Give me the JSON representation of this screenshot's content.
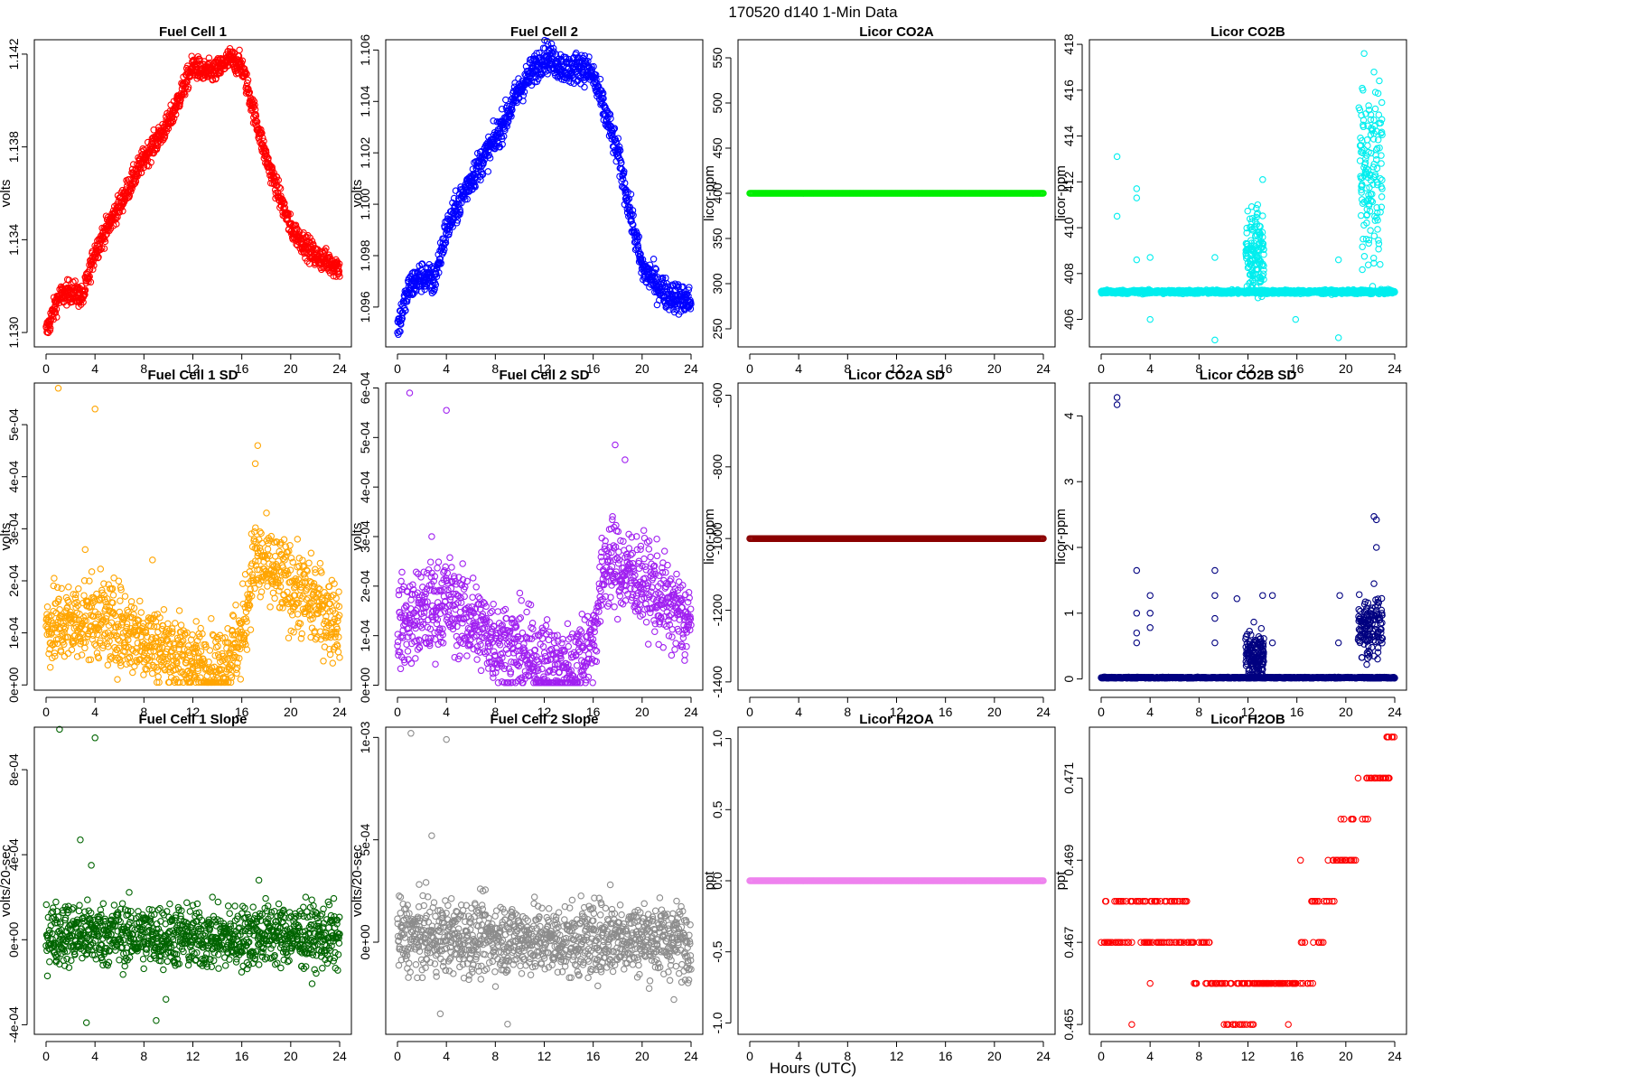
{
  "main_title": "170520   d140   1-Min Data",
  "x_label": "Hours (UTC)",
  "colors": {
    "red": "#ff0000",
    "blue": "#0000ff",
    "green": "#00ee00",
    "cyan": "#00eeee",
    "orange": "#ffa500",
    "purple": "#a020f0",
    "darkred": "#8b0000",
    "navy": "#000080",
    "darkgreen": "#006400",
    "gray": "#8c8c8c",
    "violet": "#ee82ee"
  },
  "chart_data": [
    {
      "id": "p1",
      "type": "scatter",
      "title": "Fuel Cell 1",
      "ylabel": "volts",
      "color_key": "red",
      "xlim": [
        -0.96,
        24.96
      ],
      "ylim": [
        1.12938,
        1.14262
      ],
      "xticks": [
        "0",
        "4",
        "8",
        "12",
        "16",
        "20",
        "24"
      ],
      "yticks": [
        "1.130",
        "1.134",
        "1.138",
        "1.142"
      ],
      "series": {
        "x": [
          0,
          1,
          2,
          3,
          4,
          6,
          8,
          10,
          12,
          13,
          14,
          15,
          16,
          18,
          20,
          22,
          24
        ],
        "y": [
          1.13,
          1.1315,
          1.1318,
          1.1315,
          1.1335,
          1.1355,
          1.1375,
          1.139,
          1.1415,
          1.1412,
          1.1413,
          1.1418,
          1.1415,
          1.1375,
          1.1345,
          1.1333,
          1.1328
        ],
        "noise": 0.00025
      }
    },
    {
      "id": "p2",
      "type": "scatter",
      "title": "Fuel Cell 2",
      "ylabel": "volts",
      "color_key": "blue",
      "xlim": [
        -0.96,
        24.96
      ],
      "ylim": [
        1.09445,
        1.1064
      ],
      "xticks": [
        "0",
        "4",
        "8",
        "12",
        "16",
        "20",
        "24"
      ],
      "yticks": [
        "1.096",
        "1.098",
        "1.100",
        "1.102",
        "1.104",
        "1.106"
      ],
      "series": {
        "x": [
          0,
          1,
          2,
          3,
          4,
          6,
          8,
          10,
          12,
          13,
          14,
          15,
          16,
          18,
          20,
          22,
          24
        ],
        "y": [
          1.0952,
          1.0968,
          1.0972,
          1.097,
          1.099,
          1.101,
          1.1025,
          1.1045,
          1.1058,
          1.1055,
          1.1052,
          1.1054,
          1.105,
          1.102,
          1.0975,
          1.0965,
          1.0962
        ],
        "noise": 0.0003
      }
    },
    {
      "id": "p3",
      "type": "scatter",
      "title": "Licor CO2A",
      "ylabel": "licor-ppm",
      "color_key": "green",
      "xlim": [
        -0.96,
        24.96
      ],
      "ylim": [
        230,
        570
      ],
      "xticks": [
        "0",
        "4",
        "8",
        "12",
        "16",
        "20",
        "24"
      ],
      "yticks": [
        "250",
        "300",
        "350",
        "400",
        "450",
        "500",
        "550"
      ],
      "series": {
        "x": [
          0,
          24
        ],
        "y": [
          400,
          400
        ],
        "noise": 0
      }
    },
    {
      "id": "p4",
      "type": "scatter",
      "title": "Licor CO2B",
      "ylabel": "licor-ppm",
      "color_key": "cyan",
      "xlim": [
        -0.96,
        24.96
      ],
      "ylim": [
        404.8,
        418.2
      ],
      "xticks": [
        "0",
        "4",
        "8",
        "12",
        "16",
        "20",
        "24"
      ],
      "yticks": [
        "406",
        "408",
        "410",
        "412",
        "414",
        "416",
        "418"
      ],
      "series": {
        "x": [
          0,
          24
        ],
        "y": [
          407.2,
          407.2
        ],
        "noise": 0.1,
        "spikes": [
          [
            1.3,
            413.1
          ],
          [
            1.3,
            410.5
          ],
          [
            2.9,
            411.7
          ],
          [
            2.9,
            411.3
          ],
          [
            2.9,
            408.6
          ],
          [
            4,
            408.7
          ],
          [
            4,
            406
          ],
          [
            9.3,
            408.7
          ],
          [
            9.3,
            405.1
          ],
          [
            12.3,
            409
          ],
          [
            12.8,
            411
          ],
          [
            13.2,
            412.1
          ],
          [
            15.9,
            406
          ],
          [
            19.4,
            408.6
          ],
          [
            19.4,
            405.2
          ],
          [
            21.5,
            417.6
          ],
          [
            21.4,
            416
          ],
          [
            22.3,
            414.7
          ],
          [
            22.9,
            412.8
          ],
          [
            22.8,
            408.4
          ]
        ],
        "bursts": [
          [
            11.8,
            13.3,
            409,
            1.6
          ],
          [
            21,
            23,
            412.5,
            3.5
          ]
        ]
      }
    },
    {
      "id": "p5",
      "type": "scatter",
      "title": "Fuel Cell 1 SD",
      "ylabel": "volts",
      "color_key": "orange",
      "xlim": [
        -0.96,
        24.96
      ],
      "ylim": [
        -1e-05,
        0.00058
      ],
      "xticks": [
        "0",
        "4",
        "8",
        "12",
        "16",
        "20",
        "24"
      ],
      "yticks": [
        "0e+00",
        "1e-04",
        "2e-04",
        "3e-04",
        "4e-04",
        "5e-04"
      ],
      "series": {
        "x": [
          0,
          4,
          8,
          12,
          14,
          16,
          17,
          20,
          24
        ],
        "y": [
          0.00011,
          0.00013,
          9e-05,
          4e-05,
          3e-05,
          9e-05,
          0.00024,
          0.00019,
          0.00012
        ],
        "noise": 4e-05,
        "spikes": [
          [
            1,
            0.00057
          ],
          [
            4,
            0.00053
          ],
          [
            17.3,
            0.00046
          ],
          [
            17.1,
            0.000425
          ],
          [
            8.7,
            0.00024
          ],
          [
            3.2,
            0.00026
          ]
        ]
      }
    },
    {
      "id": "p6",
      "type": "scatter",
      "title": "Fuel Cell 2 SD",
      "ylabel": "volts",
      "color_key": "purple",
      "xlim": [
        -0.96,
        24.96
      ],
      "ylim": [
        -1e-05,
        0.00061
      ],
      "xticks": [
        "0",
        "4",
        "8",
        "12",
        "16",
        "20",
        "24"
      ],
      "yticks": [
        "0e+00",
        "1e-04",
        "2e-04",
        "3e-04",
        "4e-04",
        "5e-04",
        "6e-04"
      ],
      "series": {
        "x": [
          0,
          4,
          8,
          12,
          14,
          16,
          17,
          20,
          24
        ],
        "y": [
          0.00012,
          0.00017,
          9e-05,
          4e-05,
          3e-05,
          9e-05,
          0.00025,
          0.00021,
          0.00012
        ],
        "noise": 4.5e-05,
        "spikes": [
          [
            1,
            0.00059
          ],
          [
            4,
            0.000555
          ],
          [
            17.8,
            0.000485
          ],
          [
            18.6,
            0.000455
          ],
          [
            2.8,
            0.0003
          ]
        ]
      }
    },
    {
      "id": "p7",
      "type": "scatter",
      "title": "Licor CO2A SD",
      "ylabel": "licor-ppm",
      "color_key": "darkred",
      "xlim": [
        -0.96,
        24.96
      ],
      "ylim": [
        -1423,
        -566
      ],
      "xticks": [
        "0",
        "4",
        "8",
        "12",
        "16",
        "20",
        "24"
      ],
      "yticks": [
        "-1400",
        "-1200",
        "-1000",
        "-800",
        "-600"
      ],
      "series": {
        "x": [
          0,
          24
        ],
        "y": [
          -1000,
          -1000
        ],
        "noise": 0
      }
    },
    {
      "id": "p8",
      "type": "scatter",
      "title": "Licor CO2B SD",
      "ylabel": "licor-ppm",
      "color_key": "navy",
      "xlim": [
        -0.96,
        24.96
      ],
      "ylim": [
        -0.17,
        4.5
      ],
      "xticks": [
        "0",
        "4",
        "8",
        "12",
        "16",
        "20",
        "24"
      ],
      "yticks": [
        "0",
        "1",
        "2",
        "3",
        "4"
      ],
      "series": {
        "x": [
          0,
          24
        ],
        "y": [
          0.02,
          0.02
        ],
        "noise": 0.01,
        "spikes": [
          [
            1.3,
            4.28
          ],
          [
            1.3,
            4.17
          ],
          [
            2.9,
            1.65
          ],
          [
            2.9,
            1
          ],
          [
            2.9,
            0.7
          ],
          [
            2.9,
            0.55
          ],
          [
            4,
            1.27
          ],
          [
            4,
            1.0
          ],
          [
            4,
            0.78
          ],
          [
            9.3,
            1.27
          ],
          [
            9.3,
            1.65
          ],
          [
            9.3,
            0.92
          ],
          [
            9.3,
            0.55
          ],
          [
            11.1,
            1.22
          ],
          [
            13.2,
            1.27
          ],
          [
            14,
            1.27
          ],
          [
            14,
            0.55
          ],
          [
            19.5,
            1.27
          ],
          [
            19.4,
            0.55
          ],
          [
            22.3,
            2.47
          ],
          [
            22.5,
            2.42
          ],
          [
            22.5,
            2.0
          ],
          [
            22.3,
            1.45
          ]
        ],
        "bursts": [
          [
            11.8,
            13.3,
            0.35,
            0.35
          ],
          [
            21,
            23,
            0.75,
            0.45
          ]
        ]
      }
    },
    {
      "id": "p9",
      "type": "scatter",
      "title": "Fuel Cell 1 Slope",
      "ylabel": "volts/20-sec",
      "color_key": "darkgreen",
      "xlim": [
        -0.96,
        24.96
      ],
      "ylim": [
        -0.000445,
        0.001
      ],
      "xticks": [
        "0",
        "4",
        "8",
        "12",
        "16",
        "20",
        "24"
      ],
      "yticks": [
        "-4e-04",
        "0e+00",
        "4e-04",
        "8e-04"
      ],
      "series": {
        "x": [
          0,
          8,
          10,
          12,
          14,
          16,
          18,
          20,
          24
        ],
        "y": [
          3e-05,
          2e-05,
          2e-05,
          1e-05,
          5e-06,
          1e-05,
          3e-05,
          2e-05,
          1e-05
        ],
        "noise": 7.5e-05,
        "spikes": [
          [
            1.1,
            0.00099
          ],
          [
            4,
            0.00095
          ],
          [
            2.8,
            0.00047
          ],
          [
            3.7,
            0.00035
          ],
          [
            3.3,
            -0.00039
          ],
          [
            9,
            -0.00038
          ],
          [
            9.8,
            -0.00028
          ],
          [
            17.4,
            0.00028
          ]
        ]
      }
    },
    {
      "id": "p10",
      "type": "scatter",
      "title": "Fuel Cell 2 Slope",
      "ylabel": "volts/20-sec",
      "color_key": "gray",
      "xlim": [
        -0.96,
        24.96
      ],
      "ylim": [
        -0.00045,
        0.00105
      ],
      "xticks": [
        "0",
        "4",
        "8",
        "12",
        "16",
        "20",
        "24"
      ],
      "yticks": [
        "0e+00",
        "5e-04",
        "1e-03"
      ],
      "series": {
        "x": [
          0,
          8,
          10,
          12,
          14,
          16,
          18,
          20,
          24
        ],
        "y": [
          3e-05,
          2e-05,
          2e-05,
          1e-05,
          5e-06,
          1e-05,
          3e-05,
          2e-05,
          1e-05
        ],
        "noise": 9e-05,
        "spikes": [
          [
            1.1,
            0.00102
          ],
          [
            4,
            0.00099
          ],
          [
            2.8,
            0.00052
          ],
          [
            3.5,
            -0.00035
          ],
          [
            9,
            -0.0004
          ],
          [
            22.6,
            -0.00028
          ],
          [
            17.4,
            0.00028
          ]
        ]
      }
    },
    {
      "id": "p11",
      "type": "scatter",
      "title": "Licor H2OA",
      "ylabel": "ppt",
      "color_key": "violet",
      "xlim": [
        -0.96,
        24.96
      ],
      "ylim": [
        -1.08,
        1.08
      ],
      "xticks": [
        "0",
        "4",
        "8",
        "12",
        "16",
        "20",
        "24"
      ],
      "yticks": [
        "-1.0",
        "-0.5",
        "0.0",
        "0.5",
        "1.0"
      ],
      "series": {
        "x": [
          0,
          24
        ],
        "y": [
          0,
          0
        ],
        "noise": 0
      }
    },
    {
      "id": "p12",
      "type": "scatter",
      "title": "Licor H2OB",
      "ylabel": "ppt",
      "color_key": "red",
      "xlim": [
        -0.96,
        24.96
      ],
      "ylim": [
        0.46476,
        0.47224
      ],
      "xticks": [
        "0",
        "4",
        "8",
        "12",
        "16",
        "20",
        "24"
      ],
      "yticks": [
        "0.465",
        "0.467",
        "0.469",
        "0.471"
      ],
      "series": {
        "x": [
          0,
          24
        ],
        "y": [
          0.467,
          0.467
        ],
        "noise": 0,
        "steps": [
          [
            0,
            3,
            0.467,
            0.468
          ],
          [
            3,
            7.5,
            0.467,
            0.468
          ],
          [
            7.5,
            9,
            0.466,
            0.467
          ],
          [
            9,
            10,
            0.466,
            0.466
          ],
          [
            10,
            12.5,
            0.465,
            0.466
          ],
          [
            12.5,
            16,
            0.466,
            0.466
          ],
          [
            16,
            17.2,
            0.466,
            0.467
          ],
          [
            17.2,
            18.3,
            0.467,
            0.468
          ],
          [
            18.3,
            19.6,
            0.468,
            0.469
          ],
          [
            19.6,
            21,
            0.47,
            0.469
          ],
          [
            21,
            22,
            0.47,
            0.471
          ],
          [
            22,
            23.6,
            0.471,
            0.471
          ],
          [
            23.2,
            24,
            0.472,
            0.472
          ]
        ],
        "spikes": [
          [
            2.5,
            0.465
          ],
          [
            4,
            0.466
          ],
          [
            15.3,
            0.465
          ],
          [
            16.3,
            0.469
          ],
          [
            17.3,
            0.466
          ]
        ]
      }
    }
  ]
}
